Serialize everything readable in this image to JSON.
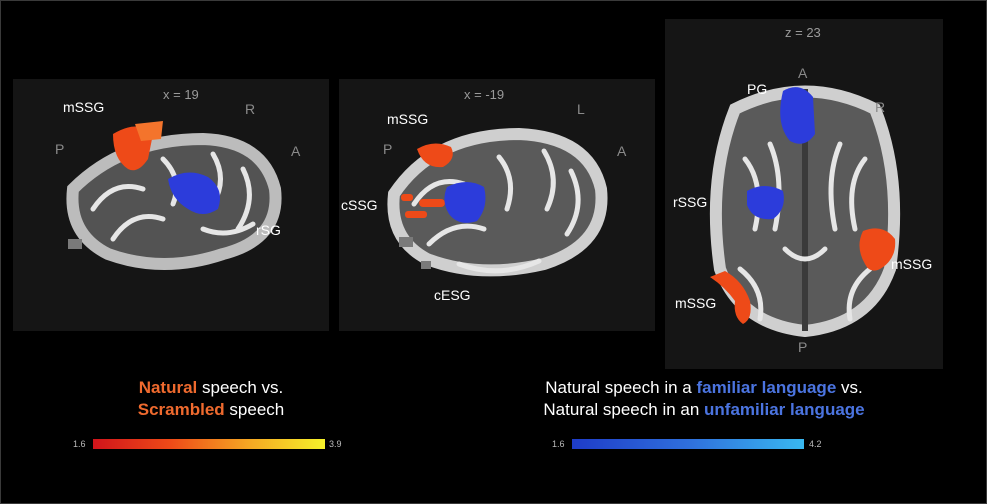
{
  "colors": {
    "orange_highlight": "#ef6a2e",
    "blue_highlight": "#4b74e0",
    "activation_blue": "#2c3cdb",
    "activation_orange": "#ee4a18"
  },
  "panels": [
    {
      "coord": "x = 19",
      "directions": {
        "left": "P",
        "right": "A",
        "top": "R"
      },
      "labels": {
        "top": "mSSG",
        "right": "rSG"
      }
    },
    {
      "coord": "x = -19",
      "directions": {
        "left": "P",
        "right": "A",
        "top": "L"
      },
      "labels": {
        "top": "mSSG",
        "left": "cSSG",
        "bottom": "cESG"
      }
    },
    {
      "coord": "z = 23",
      "directions": {
        "top": "A",
        "right": "R",
        "bottom": "P"
      },
      "labels": {
        "pg": "PG",
        "rssg": "rSSG",
        "mssg_right": "mSSG",
        "mssg_left": "mSSG"
      }
    }
  ],
  "legend_left": {
    "line1_highlight": "Natural",
    "line1_rest": " speech vs.",
    "line2_highlight": "Scrambled",
    "line2_rest": " speech",
    "scale_min": "1.6",
    "scale_max": "3.9"
  },
  "legend_right": {
    "line1_start": "Natural speech in a ",
    "line1_highlight": "familiar language",
    "line1_end": " vs.",
    "line2_start": "Natural speech in an ",
    "line2_highlight": "unfamiliar language",
    "scale_min": "1.6",
    "scale_max": "4.2"
  }
}
